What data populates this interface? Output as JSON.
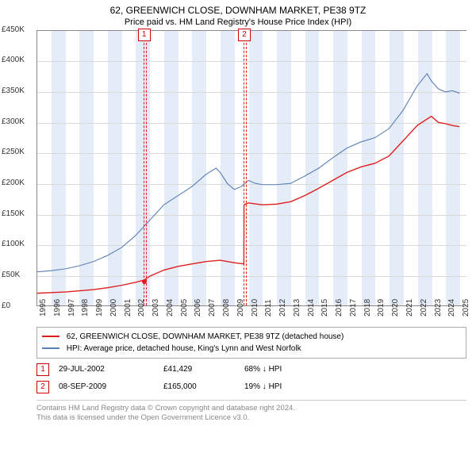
{
  "title_line1": "62, GREENWICH CLOSE, DOWNHAM MARKET, PE38 9TZ",
  "title_line2": "Price paid vs. HM Land Registry's House Price Index (HPI)",
  "chart": {
    "type": "line",
    "background_color": "#ffffff",
    "grid_color": "#d9d9d9",
    "alt_band_color": "#e4ecf7",
    "border_color": "#888888",
    "x_start_year": 1995,
    "x_end_year": 2025.5,
    "xtick_years": [
      1995,
      1996,
      1997,
      1998,
      1999,
      2000,
      2001,
      2002,
      2003,
      2004,
      2005,
      2006,
      2007,
      2008,
      2009,
      2010,
      2011,
      2012,
      2013,
      2014,
      2015,
      2016,
      2017,
      2018,
      2019,
      2020,
      2021,
      2022,
      2023,
      2024,
      2025
    ],
    "ylim": [
      0,
      450000
    ],
    "ytick_step": 50000,
    "yticks_labels": [
      "£0",
      "£50K",
      "£100K",
      "£150K",
      "£200K",
      "£250K",
      "£300K",
      "£350K",
      "£400K",
      "£450K"
    ],
    "label_fontsize": 10,
    "series": [
      {
        "name": "price_paid",
        "label": "62, GREENWICH CLOSE, DOWNHAM MARKET, PE38 9TZ (detached house)",
        "color": "#e01f1f",
        "line_width": 1.4,
        "points": [
          [
            1995,
            20000
          ],
          [
            1996,
            21000
          ],
          [
            1997,
            22000
          ],
          [
            1998,
            24000
          ],
          [
            1999,
            26000
          ],
          [
            2000,
            29000
          ],
          [
            2001,
            33000
          ],
          [
            2002,
            38000
          ],
          [
            2002.58,
            41429
          ],
          [
            2003,
            48000
          ],
          [
            2004,
            58000
          ],
          [
            2005,
            64000
          ],
          [
            2006,
            68000
          ],
          [
            2007,
            72000
          ],
          [
            2008,
            74000
          ],
          [
            2009,
            70000
          ],
          [
            2009.68,
            68000
          ],
          [
            2009.69,
            165000
          ],
          [
            2010,
            168000
          ],
          [
            2011,
            165000
          ],
          [
            2012,
            166000
          ],
          [
            2013,
            170000
          ],
          [
            2014,
            180000
          ],
          [
            2015,
            192000
          ],
          [
            2016,
            205000
          ],
          [
            2017,
            218000
          ],
          [
            2018,
            227000
          ],
          [
            2019,
            233000
          ],
          [
            2020,
            245000
          ],
          [
            2021,
            270000
          ],
          [
            2022,
            295000
          ],
          [
            2023,
            310000
          ],
          [
            2023.5,
            300000
          ],
          [
            2024,
            298000
          ],
          [
            2024.5,
            295000
          ],
          [
            2025,
            293000
          ]
        ]
      },
      {
        "name": "hpi",
        "label": "HPI: Average price, detached house, King's Lynn and West Norfolk",
        "color": "#5a7fb6",
        "line_width": 1.1,
        "points": [
          [
            1995,
            55000
          ],
          [
            1996,
            57000
          ],
          [
            1997,
            60000
          ],
          [
            1998,
            65000
          ],
          [
            1999,
            72000
          ],
          [
            2000,
            82000
          ],
          [
            2001,
            95000
          ],
          [
            2002,
            115000
          ],
          [
            2003,
            140000
          ],
          [
            2004,
            165000
          ],
          [
            2005,
            180000
          ],
          [
            2006,
            195000
          ],
          [
            2007,
            215000
          ],
          [
            2007.7,
            225000
          ],
          [
            2008,
            218000
          ],
          [
            2008.5,
            200000
          ],
          [
            2009,
            190000
          ],
          [
            2009.5,
            195000
          ],
          [
            2010,
            205000
          ],
          [
            2010.5,
            200000
          ],
          [
            2011,
            198000
          ],
          [
            2012,
            198000
          ],
          [
            2013,
            200000
          ],
          [
            2014,
            212000
          ],
          [
            2015,
            225000
          ],
          [
            2016,
            242000
          ],
          [
            2017,
            258000
          ],
          [
            2018,
            268000
          ],
          [
            2019,
            275000
          ],
          [
            2020,
            290000
          ],
          [
            2021,
            320000
          ],
          [
            2022,
            360000
          ],
          [
            2022.7,
            380000
          ],
          [
            2023,
            368000
          ],
          [
            2023.5,
            355000
          ],
          [
            2024,
            350000
          ],
          [
            2024.5,
            352000
          ],
          [
            2025,
            348000
          ]
        ]
      }
    ],
    "markers": [
      {
        "idx": "1",
        "year": 2002.58,
        "band_width_years": 0.12
      },
      {
        "idx": "2",
        "year": 2009.69,
        "band_width_years": 0.12
      }
    ],
    "sale_dots": [
      {
        "year": 2002.58,
        "value": 41429
      }
    ]
  },
  "legend": {
    "items": [
      {
        "color": "#e01f1f",
        "label_key": "chart.series.0.label"
      },
      {
        "color": "#5a7fb6",
        "label_key": "chart.series.1.label"
      }
    ]
  },
  "events": [
    {
      "idx": "1",
      "date": "29-JUL-2002",
      "price": "£41,429",
      "delta": "68% ↓ HPI"
    },
    {
      "idx": "2",
      "date": "08-SEP-2009",
      "price": "£165,000",
      "delta": "19% ↓ HPI"
    }
  ],
  "footer_line1": "Contains HM Land Registry data © Crown copyright and database right 2024.",
  "footer_line2": "This data is licensed under the Open Government Licence v3.0."
}
